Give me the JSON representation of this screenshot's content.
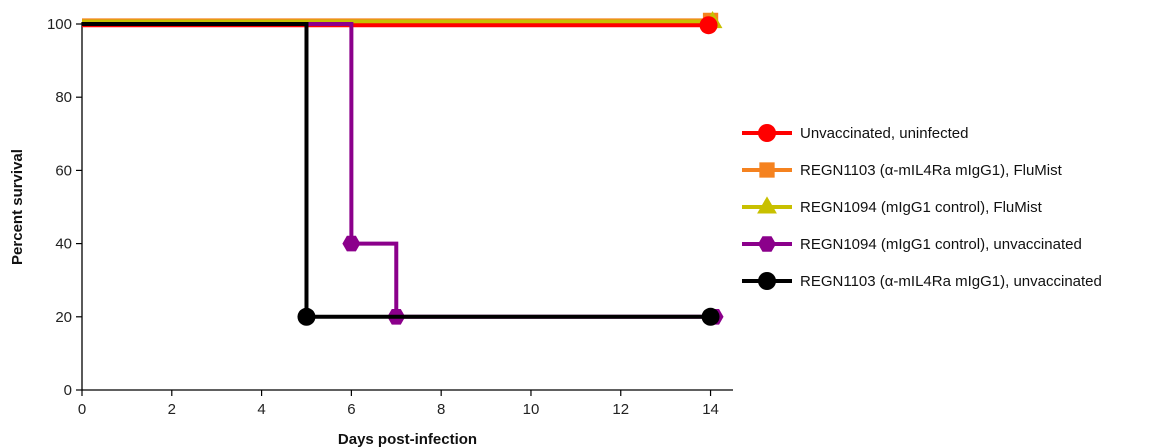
{
  "chart_data": {
    "type": "line",
    "step": true,
    "title": "",
    "xlabel": "Days post-infection",
    "ylabel": "Percent survival",
    "xlim": [
      0,
      14.5
    ],
    "ylim": [
      0,
      100
    ],
    "xticks": [
      0,
      2,
      4,
      6,
      8,
      10,
      12,
      14
    ],
    "yticks": [
      0,
      20,
      40,
      60,
      80,
      100
    ],
    "grid": false,
    "legend_position": "right",
    "series": [
      {
        "name": "Unvaccinated, uninfected",
        "color": "#ff0000",
        "marker": "circle",
        "steps": [
          [
            0,
            100
          ],
          [
            14,
            100
          ]
        ],
        "markers": [
          [
            14,
            100
          ]
        ]
      },
      {
        "name": "REGN1103 (α-mIL4Ra mIgG1), FluMist",
        "color": "#f5821f",
        "marker": "square",
        "steps": [
          [
            0,
            100
          ],
          [
            14,
            100
          ]
        ],
        "markers": [
          [
            14,
            100
          ]
        ]
      },
      {
        "name": "REGN1094 (mIgG1 control), FluMist",
        "color": "#c8c000",
        "marker": "triangle",
        "steps": [
          [
            0,
            100
          ],
          [
            14,
            100
          ]
        ],
        "markers": [
          [
            14,
            100
          ]
        ]
      },
      {
        "name": "REGN1094 (mIgG1 control), unvaccinated",
        "color": "#8b008b",
        "marker": "hexagon",
        "steps": [
          [
            0,
            100
          ],
          [
            6,
            100
          ],
          [
            6,
            40
          ],
          [
            7,
            40
          ],
          [
            7,
            20
          ],
          [
            14,
            20
          ]
        ],
        "markers": [
          [
            6,
            40
          ],
          [
            7,
            20
          ],
          [
            14,
            20
          ]
        ]
      },
      {
        "name": "REGN1103 (α-mIL4Ra mIgG1), unvaccinated",
        "color": "#000000",
        "marker": "circle",
        "steps": [
          [
            0,
            100
          ],
          [
            5,
            100
          ],
          [
            5,
            20
          ],
          [
            14,
            20
          ]
        ],
        "markers": [
          [
            5,
            20
          ],
          [
            14,
            20
          ]
        ]
      }
    ]
  }
}
